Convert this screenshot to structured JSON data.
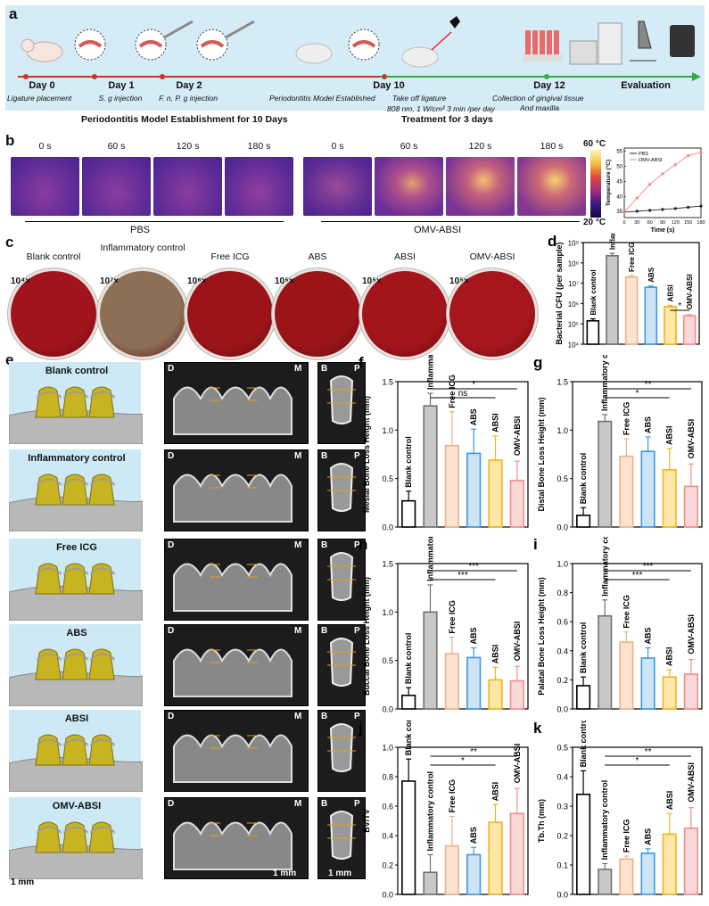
{
  "panel_a": {
    "letter": "a",
    "timeline": [
      {
        "day": "Day 0",
        "desc": "Ligature placement"
      },
      {
        "day": "Day 1",
        "desc": "S. g injection"
      },
      {
        "day": "Day 2",
        "desc": "F. n, P. g injection"
      },
      {
        "day": "Day 10",
        "desc_left": "Periodontitis Model Established",
        "desc_right": "Take off ligature",
        "desc_right2": "808 nm, 1 W/cm² 3 min /per day"
      },
      {
        "day": "Day 12",
        "desc": "Collection of gingival tissue",
        "desc2": "And maxilla"
      },
      {
        "day": "Evaluation"
      }
    ],
    "phase1": "Periodontitis Model Establishment for 10 Days",
    "phase2": "Treatment for 3 days"
  },
  "panel_b": {
    "letter": "b",
    "times": [
      "0 s",
      "60 s",
      "120 s",
      "180 s"
    ],
    "group1": "PBS",
    "group2": "OMV-ABSI",
    "scale_max": "60 °C",
    "scale_min": "20 °C"
  },
  "panel_c": {
    "letter": "c",
    "plates": [
      {
        "label": "Blank control",
        "mult": "10⁴×",
        "color": "#a2141c"
      },
      {
        "label": "Inflammatory control",
        "mult": "10⁷×",
        "color": "#8c6f55"
      },
      {
        "label": "Free ICG",
        "mult": "10⁶×",
        "color": "#9c1418"
      },
      {
        "label": "ABS",
        "mult": "10⁵×",
        "color": "#9a1418"
      },
      {
        "label": "ABSI",
        "mult": "10⁵×",
        "color": "#a3141b"
      },
      {
        "label": "OMV-ABSI",
        "mult": "10⁵×",
        "color": "#a6161c"
      }
    ]
  },
  "panel_e": {
    "letter": "e",
    "groups": [
      "Blank control",
      "Inflammatory control",
      "Free ICG",
      "ABS",
      "ABSI",
      "OMV-ABSI"
    ],
    "label_d": "D",
    "label_m": "M",
    "label_b": "B",
    "label_p": "P",
    "scale": "1 mm"
  },
  "chart_data": [
    {
      "panel": "b-inset",
      "type": "line",
      "xlabel": "Time (s)",
      "ylabel": "Temperature (°C)",
      "x": [
        0,
        30,
        60,
        90,
        120,
        150,
        180
      ],
      "xticks": [
        "0",
        "30",
        "60",
        "90",
        "120",
        "150",
        "180"
      ],
      "yticks": [
        "35",
        "40",
        "45",
        "50",
        "55"
      ],
      "ylim": [
        33,
        56
      ],
      "series": [
        {
          "name": "PBS",
          "values": [
            34.8,
            35.1,
            35.4,
            35.7,
            36.0,
            36.4,
            36.8
          ],
          "color": "#222222"
        },
        {
          "name": "OMV-ABSI",
          "values": [
            34.8,
            39.5,
            44.0,
            47.5,
            50.5,
            53.5,
            54.5
          ],
          "color": "#f08a8a"
        }
      ]
    },
    {
      "panel": "d",
      "type": "bar",
      "ylabel": "Bacterial CFU (per sample)",
      "scale": "log",
      "ylim": [
        4,
        9
      ],
      "yticks": [
        "10⁴",
        "10⁵",
        "10⁶",
        "10⁷",
        "10⁸",
        "10⁹"
      ],
      "categories": [
        "Blank control",
        "Inflammatory control",
        "Free ICG",
        "ABS",
        "ABSI",
        "OMV-ABSI"
      ],
      "values": [
        5.15,
        8.35,
        7.3,
        6.8,
        5.85,
        5.4
      ],
      "errors": [
        0.1,
        0.12,
        0.08,
        0.06,
        0.06,
        0.05
      ],
      "sig": [
        {
          "from": 4,
          "to": 5,
          "label": "*"
        }
      ]
    },
    {
      "panel": "f",
      "type": "bar",
      "ylabel": "Mesial Bone Loss Height (mm)",
      "ylim": [
        0,
        1.5
      ],
      "yticks": [
        "0.0",
        "0.5",
        "1.0",
        "1.5"
      ],
      "categories": [
        "Blank control",
        "Inflammatory control",
        "Free ICG",
        "ABS",
        "ABSI",
        "OMV-ABSI"
      ],
      "values": [
        0.27,
        1.25,
        0.84,
        0.76,
        0.69,
        0.48
      ],
      "errors": [
        0.1,
        0.13,
        0.35,
        0.25,
        0.25,
        0.2
      ],
      "sig": [
        {
          "from": 1,
          "to": 4,
          "label": "ns"
        },
        {
          "from": 1,
          "to": 5,
          "label": "*"
        }
      ]
    },
    {
      "panel": "g",
      "type": "bar",
      "ylabel": "Distal Bone Loss Height (mm)",
      "ylim": [
        0,
        1.5
      ],
      "yticks": [
        "0.0",
        "0.5",
        "1.0",
        "1.5"
      ],
      "categories": [
        "Blank control",
        "Inflammatory control",
        "Free ICG",
        "ABS",
        "ABSI",
        "OMV-ABSI"
      ],
      "values": [
        0.12,
        1.09,
        0.73,
        0.78,
        0.59,
        0.42
      ],
      "errors": [
        0.08,
        0.07,
        0.18,
        0.15,
        0.22,
        0.23
      ],
      "sig": [
        {
          "from": 1,
          "to": 4,
          "label": "*"
        },
        {
          "from": 1,
          "to": 5,
          "label": "**"
        }
      ]
    },
    {
      "panel": "h",
      "type": "bar",
      "ylabel": "Buccal Bone Loss Height (mm)",
      "ylim": [
        0,
        1.5
      ],
      "yticks": [
        "0.0",
        "0.5",
        "1.0",
        "1.5"
      ],
      "categories": [
        "Blank control",
        "Inflammatory control",
        "Free ICG",
        "ABS",
        "ABSI",
        "OMV-ABSI"
      ],
      "values": [
        0.14,
        1.0,
        0.57,
        0.53,
        0.3,
        0.29
      ],
      "errors": [
        0.08,
        0.28,
        0.17,
        0.1,
        0.13,
        0.15
      ],
      "sig": [
        {
          "from": 1,
          "to": 4,
          "label": "***"
        },
        {
          "from": 1,
          "to": 5,
          "label": "***"
        }
      ]
    },
    {
      "panel": "i",
      "type": "bar",
      "ylabel": "Palatal Bone Loss Height (mm)",
      "ylim": [
        0,
        1.0
      ],
      "yticks": [
        "0.0",
        "0.2",
        "0.4",
        "0.6",
        "0.8",
        "1.0"
      ],
      "categories": [
        "Blank control",
        "Inflammatory control",
        "Free ICG",
        "ABS",
        "ABSI",
        "OMV-ABSI"
      ],
      "values": [
        0.16,
        0.64,
        0.46,
        0.35,
        0.22,
        0.24
      ],
      "errors": [
        0.06,
        0.11,
        0.07,
        0.07,
        0.05,
        0.1
      ],
      "sig": [
        {
          "from": 1,
          "to": 4,
          "label": "***"
        },
        {
          "from": 1,
          "to": 5,
          "label": "***"
        }
      ]
    },
    {
      "panel": "j",
      "type": "bar",
      "ylabel": "BV/TV",
      "ylim": [
        0,
        1.0
      ],
      "yticks": [
        "0.0",
        "0.2",
        "0.4",
        "0.6",
        "0.8",
        "1.0"
      ],
      "categories": [
        "Blank control",
        "Inflammatory control",
        "Free ICG",
        "ABS",
        "ABSI",
        "OMV-ABSI"
      ],
      "values": [
        0.77,
        0.15,
        0.33,
        0.27,
        0.49,
        0.55
      ],
      "errors": [
        0.15,
        0.12,
        0.2,
        0.05,
        0.12,
        0.17
      ],
      "sig": [
        {
          "from": 1,
          "to": 4,
          "label": "*"
        },
        {
          "from": 1,
          "to": 5,
          "label": "**"
        }
      ]
    },
    {
      "panel": "k",
      "type": "bar",
      "ylabel": "Tb.Th (mm)",
      "ylim": [
        0,
        0.5
      ],
      "yticks": [
        "0.0",
        "0.1",
        "0.2",
        "0.3",
        "0.4",
        "0.5"
      ],
      "categories": [
        "Blank control",
        "Inflammatory control",
        "Free ICG",
        "ABS",
        "ABSI",
        "OMV-ABSI"
      ],
      "values": [
        0.34,
        0.085,
        0.12,
        0.14,
        0.205,
        0.225
      ],
      "errors": [
        0.08,
        0.02,
        0.01,
        0.015,
        0.07,
        0.07
      ],
      "sig": [
        {
          "from": 1,
          "to": 4,
          "label": "*"
        },
        {
          "from": 1,
          "to": 5,
          "label": "**"
        }
      ]
    }
  ],
  "panel_letters": {
    "d": "d",
    "f": "f",
    "g": "g",
    "h": "h",
    "i": "i",
    "j": "j",
    "k": "k"
  },
  "colors": {
    "fills": [
      "#ffffff",
      "#c8c8c8",
      "#fbe3cf",
      "#cde4f7",
      "#ffe7a6",
      "#fbd8d8"
    ],
    "strokes": [
      "#000000",
      "#707070",
      "#e8b48b",
      "#3a98dc",
      "#f0b41e",
      "#ef8f8f"
    ]
  }
}
